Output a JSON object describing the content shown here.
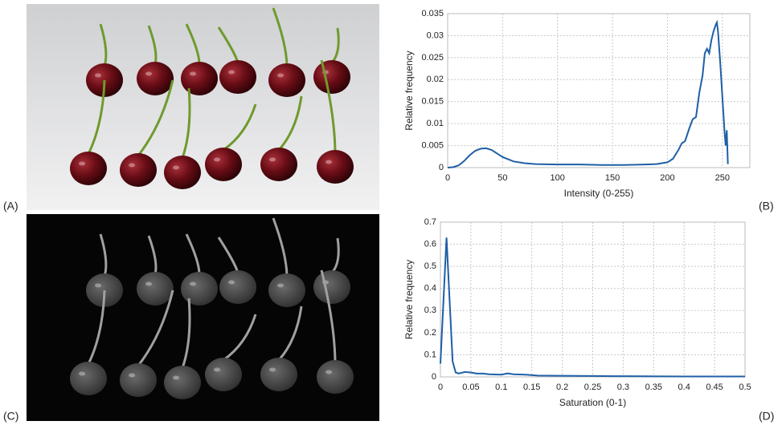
{
  "panel_labels": [
    "(A)",
    "(B)",
    "(C)",
    "(D)"
  ],
  "chart_data": [
    {
      "type": "line",
      "x_label": "Intensity (0-255)",
      "y_label": "Relative frequency",
      "color": "#1f5fa6",
      "x": [
        0,
        5,
        10,
        15,
        20,
        25,
        30,
        35,
        40,
        45,
        50,
        60,
        70,
        80,
        100,
        120,
        140,
        160,
        180,
        190,
        200,
        205,
        210,
        213,
        216,
        220,
        223,
        226,
        229,
        232,
        234,
        236,
        238,
        240,
        242,
        244,
        245,
        246,
        248,
        250,
        252,
        253,
        254,
        255
      ],
      "values": [
        0,
        0.0001,
        0.0005,
        0.0015,
        0.0028,
        0.0038,
        0.0043,
        0.0044,
        0.004,
        0.0032,
        0.0024,
        0.0014,
        0.001,
        0.0008,
        0.0007,
        0.0007,
        0.0006,
        0.0006,
        0.0007,
        0.0008,
        0.0012,
        0.002,
        0.004,
        0.0055,
        0.006,
        0.009,
        0.011,
        0.0115,
        0.017,
        0.021,
        0.026,
        0.027,
        0.026,
        0.029,
        0.031,
        0.0325,
        0.033,
        0.031,
        0.024,
        0.016,
        0.008,
        0.005,
        0.0085,
        0.0008
      ],
      "xlim": [
        0,
        275
      ],
      "ylim": [
        0,
        0.035
      ],
      "xticks": [
        0,
        50,
        100,
        150,
        200,
        250
      ],
      "yticks": [
        0,
        0.005,
        0.01,
        0.015,
        0.02,
        0.025,
        0.03,
        0.035
      ],
      "grid": true
    },
    {
      "type": "line",
      "x_label": "Saturation (0-1)",
      "y_label": "Relative frequency",
      "color": "#1f5fa6",
      "x": [
        0,
        0.01,
        0.02,
        0.025,
        0.03,
        0.04,
        0.05,
        0.06,
        0.07,
        0.08,
        0.1,
        0.11,
        0.12,
        0.14,
        0.16,
        0.2,
        0.25,
        0.3,
        0.4,
        0.5
      ],
      "values": [
        0.06,
        0.63,
        0.07,
        0.02,
        0.015,
        0.022,
        0.02,
        0.015,
        0.015,
        0.012,
        0.01,
        0.016,
        0.012,
        0.01,
        0.006,
        0.005,
        0.004,
        0.003,
        0.002,
        0.002
      ],
      "xlim": [
        0,
        0.5
      ],
      "ylim": [
        0,
        0.7
      ],
      "xticks": [
        0,
        0.05,
        0.1,
        0.15,
        0.2,
        0.25,
        0.3,
        0.35,
        0.4,
        0.45,
        0.5
      ],
      "yticks": [
        0,
        0.1,
        0.2,
        0.3,
        0.4,
        0.5,
        0.6,
        0.7
      ],
      "grid": true
    }
  ]
}
